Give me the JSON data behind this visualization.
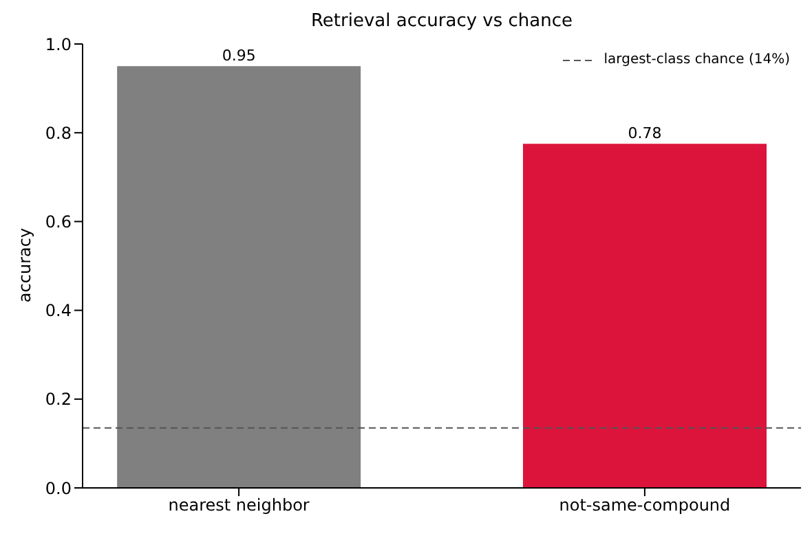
{
  "chart_data": {
    "type": "bar",
    "title": "Retrieval accuracy vs chance",
    "ylabel": "accuracy",
    "categories": [
      "nearest neighbor",
      "not-same-compound"
    ],
    "values": [
      0.95,
      0.775
    ],
    "colors": [
      "#808080",
      "#dc143c"
    ],
    "value_labels": [
      "0.95",
      "0.78"
    ],
    "ylim": [
      0,
      1
    ],
    "yticks": [
      {
        "value": 0,
        "label": "0.0"
      },
      {
        "value": 0.2,
        "label": "0.2"
      },
      {
        "value": 0.4,
        "label": "0.4"
      },
      {
        "value": 0.6,
        "label": "0.6"
      },
      {
        "value": 0.8,
        "label": "0.8"
      },
      {
        "value": 1,
        "label": "1.0"
      }
    ],
    "ref_lines": [
      {
        "axis": "y",
        "value": 0.135,
        "label": "largest-class chance (14%)",
        "color": "#555555",
        "line_style": "dashed"
      }
    ],
    "legend": "top right",
    "grid": false
  }
}
